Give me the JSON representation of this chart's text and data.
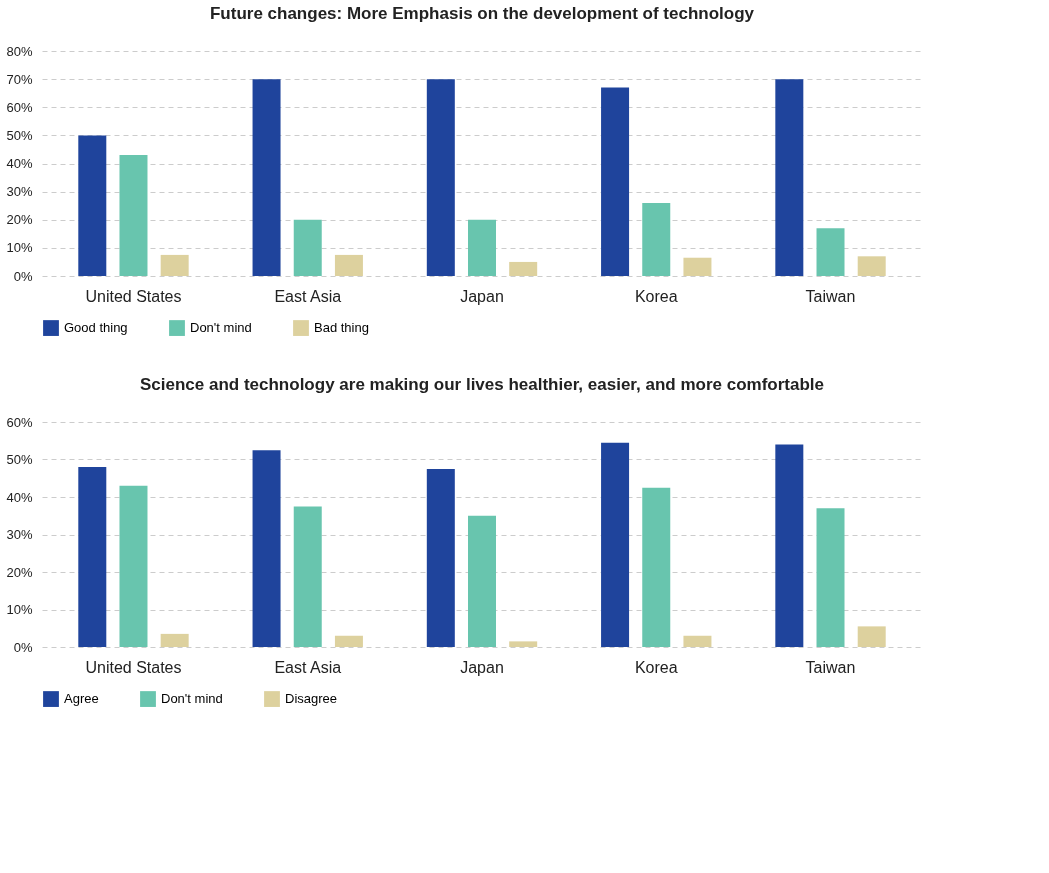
{
  "chart_data": [
    {
      "type": "bar",
      "title": "Future changes: More Emphasis on the development of technology",
      "categories": [
        "United States",
        "East Asia",
        "Japan",
        "Korea",
        "Taiwan"
      ],
      "series": [
        {
          "name": "Good thing",
          "color": "#1f449c",
          "values": [
            50,
            70,
            70,
            67,
            70
          ]
        },
        {
          "name": "Don't mind",
          "color": "#68c5ae",
          "values": [
            43,
            20,
            20,
            26,
            17
          ]
        },
        {
          "name": "Bad thing",
          "color": "#ddd19e",
          "values": [
            7.5,
            7.5,
            5,
            6.5,
            7
          ]
        }
      ],
      "ylim": [
        0,
        80
      ],
      "yticks": [
        {
          "value": 0,
          "label": "0%"
        },
        {
          "value": 10,
          "label": "10%"
        },
        {
          "value": 20,
          "label": "20%"
        },
        {
          "value": 30,
          "label": "30%"
        },
        {
          "value": 40,
          "label": "40%"
        },
        {
          "value": 50,
          "label": "50%"
        },
        {
          "value": 60,
          "label": "60%"
        },
        {
          "value": 70,
          "label": "70%"
        },
        {
          "value": 80,
          "label": "80%"
        }
      ],
      "grid": "y",
      "legend": "bottom"
    },
    {
      "type": "bar",
      "title": "Science and technology are making our lives healthier, easier, and more comfortable",
      "categories": [
        "United States",
        "East Asia",
        "Japan",
        "Korea",
        "Taiwan"
      ],
      "series": [
        {
          "name": "Agree",
          "color": "#1f449c",
          "values": [
            48,
            52.5,
            47.5,
            54.5,
            54
          ]
        },
        {
          "name": "Don't mind",
          "color": "#68c5ae",
          "values": [
            43,
            37.5,
            35,
            42.5,
            37
          ]
        },
        {
          "name": "Disagree",
          "color": "#ddd19e",
          "values": [
            3.5,
            3,
            1.5,
            3,
            5.5
          ]
        }
      ],
      "ylim": [
        0,
        60
      ],
      "yticks": [
        {
          "value": 0,
          "label": "0%"
        },
        {
          "value": 10,
          "label": "10%"
        },
        {
          "value": 20,
          "label": "20%"
        },
        {
          "value": 30,
          "label": "30%"
        },
        {
          "value": 40,
          "label": "40%"
        },
        {
          "value": 50,
          "label": "50%"
        },
        {
          "value": 60,
          "label": "60%"
        }
      ],
      "grid": "y",
      "legend": "bottom"
    }
  ]
}
